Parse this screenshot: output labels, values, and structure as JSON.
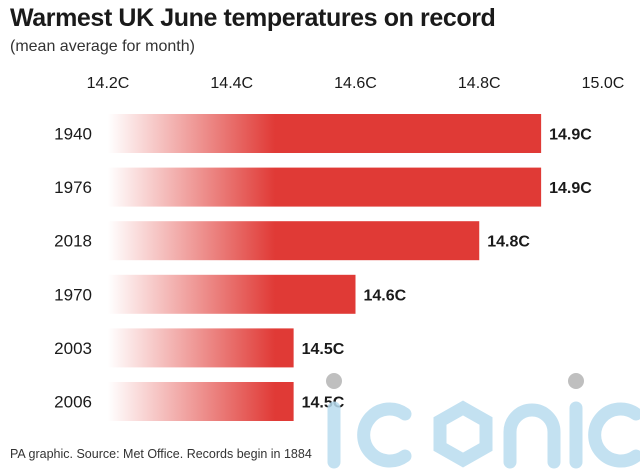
{
  "header": {
    "title": "Warmest UK June temperatures on record",
    "subtitle": "(mean average for month)"
  },
  "footer": {
    "source": "PA graphic. Source: Met Office. Records begin in 1884"
  },
  "watermark": {
    "text": "iconic"
  },
  "colors": {
    "bar_red": "#e03a36",
    "bar_fade": "#ffffff",
    "text": "#1a1a1a",
    "watermark": "#b9dcef"
  },
  "chart_data": {
    "type": "bar",
    "orientation": "horizontal",
    "categories": [
      "1940",
      "1976",
      "2018",
      "1970",
      "2003",
      "2006"
    ],
    "values": [
      14.9,
      14.9,
      14.8,
      14.6,
      14.5,
      14.5
    ],
    "value_labels": [
      "14.9C",
      "14.9C",
      "14.8C",
      "14.6C",
      "14.5C",
      "14.5C"
    ],
    "x_ticks": [
      14.2,
      14.4,
      14.6,
      14.8,
      15.0
    ],
    "x_tick_labels": [
      "14.2C",
      "14.4C",
      "14.6C",
      "14.8C",
      "15.0C"
    ],
    "xlim": [
      14.2,
      15.0
    ],
    "xaxis_position": "top",
    "grid": false,
    "legend": false
  }
}
